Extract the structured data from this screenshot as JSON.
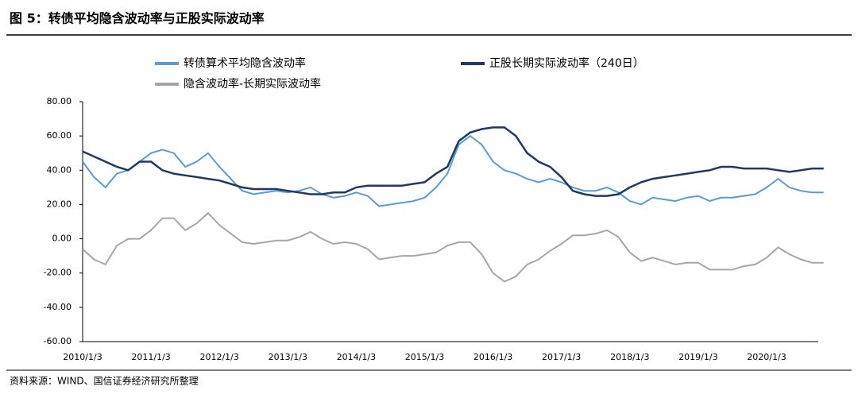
{
  "chart_data": {
    "type": "line",
    "title": "图 5：转债平均隐含波动率与正股实际波动率",
    "source": "资料来源：WIND、国信证券经济研究所整理",
    "categories": [
      "2010/1/3",
      null,
      null,
      null,
      null,
      null,
      "2011/1/3",
      null,
      null,
      null,
      null,
      null,
      "2012/1/3",
      null,
      null,
      null,
      null,
      null,
      "2013/1/3",
      null,
      null,
      null,
      null,
      null,
      "2014/1/3",
      null,
      null,
      null,
      null,
      null,
      "2015/1/3",
      null,
      null,
      null,
      null,
      null,
      "2016/1/3",
      null,
      null,
      null,
      null,
      null,
      "2017/1/3",
      null,
      null,
      null,
      null,
      null,
      "2018/1/3",
      null,
      null,
      null,
      null,
      null,
      "2019/1/3",
      null,
      null,
      null,
      null,
      null,
      "2020/1/3",
      null,
      null,
      null,
      null,
      null
    ],
    "series": [
      {
        "name": "转债算术平均隐含波动率",
        "color": "#5b9bd5",
        "values": [
          45,
          36,
          30,
          38,
          40,
          45,
          50,
          52,
          50,
          42,
          45,
          50,
          42,
          35,
          28,
          26,
          27,
          28,
          27,
          28,
          30,
          26,
          24,
          25,
          27,
          25,
          19,
          20,
          21,
          22,
          24,
          30,
          38,
          55,
          60,
          55,
          45,
          40,
          38,
          35,
          33,
          35,
          33,
          30,
          28,
          28,
          30,
          27,
          22,
          20,
          24,
          23,
          22,
          24,
          25,
          22,
          24,
          24,
          25,
          26,
          30,
          35,
          30,
          28,
          27,
          27
        ]
      },
      {
        "name": "正股长期实际波动率（240日）",
        "color": "#1f3864",
        "values": [
          51,
          48,
          45,
          42,
          40,
          45,
          45,
          40,
          38,
          37,
          36,
          35,
          34,
          32,
          30,
          29,
          29,
          29,
          28,
          27,
          26,
          26,
          27,
          27,
          30,
          31,
          31,
          31,
          31,
          32,
          33,
          38,
          42,
          57,
          62,
          64,
          65,
          65,
          60,
          50,
          45,
          42,
          36,
          28,
          26,
          25,
          25,
          26,
          30,
          33,
          35,
          36,
          37,
          38,
          39,
          40,
          42,
          42,
          41,
          41,
          41,
          40,
          39,
          40,
          41,
          41
        ]
      },
      {
        "name": "隐含波动率-长期实际波动率",
        "color": "#a6a6a6",
        "values": [
          -6,
          -12,
          -15,
          -4,
          0,
          0,
          5,
          12,
          12,
          5,
          9,
          15,
          8,
          3,
          -2,
          -3,
          -2,
          -1,
          -1,
          1,
          4,
          0,
          -3,
          -2,
          -3,
          -6,
          -12,
          -11,
          -10,
          -10,
          -9,
          -8,
          -4,
          -2,
          -2,
          -9,
          -20,
          -25,
          -22,
          -15,
          -12,
          -7,
          -3,
          2,
          2,
          3,
          5,
          1,
          -8,
          -13,
          -11,
          -13,
          -15,
          -14,
          -14,
          -18,
          -18,
          -18,
          -16,
          -15,
          -11,
          -5,
          -9,
          -12,
          -14,
          -14
        ]
      }
    ],
    "ylim": [
      -60,
      80
    ],
    "yticks": [
      {
        "value": 80,
        "label": "80.00"
      },
      {
        "value": 60,
        "label": "60.00"
      },
      {
        "value": 40,
        "label": "40.00"
      },
      {
        "value": 20,
        "label": "20.00"
      },
      {
        "value": 0,
        "label": "0.00"
      },
      {
        "value": -20,
        "label": "-20.00"
      },
      {
        "value": -40,
        "label": "-40.00"
      },
      {
        "value": -60,
        "label": "-60.00"
      }
    ]
  }
}
